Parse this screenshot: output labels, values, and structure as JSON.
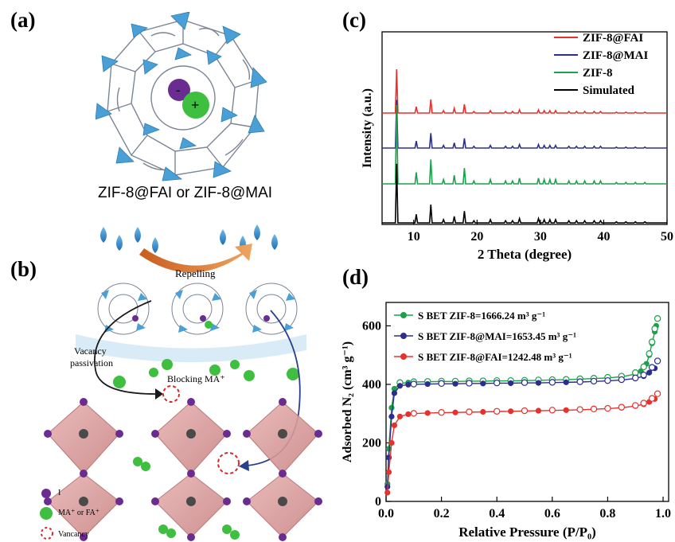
{
  "panels": {
    "a": {
      "label": "(a)",
      "caption": "ZIF-8@FAI or ZIF-8@MAI",
      "ion_minus": "-",
      "ion_plus": "+"
    },
    "b": {
      "label": "(b)",
      "repelling": "Repelling",
      "vacancy_passivation_1": "Vacancy",
      "vacancy_passivation_2": "passivation",
      "blocking": "Blocking MA⁺",
      "legend_i": "I",
      "legend_ma": "MA⁺ or FA⁺",
      "legend_vacancy": "Vancancy"
    },
    "c": {
      "label": "(c)",
      "chart_data": {
        "type": "line",
        "xlabel": "2 Theta (degree)",
        "ylabel": "Intensity (a.u.)",
        "xlim": [
          5,
          50
        ],
        "xticks": [
          10,
          20,
          30,
          40,
          50
        ],
        "peaks_2theta": [
          7.3,
          10.4,
          12.7,
          14.7,
          16.4,
          18.0,
          19.5,
          22.1,
          24.5,
          25.6,
          26.7,
          29.7,
          30.6,
          31.5,
          32.4,
          34.5,
          35.7,
          37.0,
          38.5,
          39.5,
          42.0,
          43.5,
          45.0,
          46.5
        ],
        "series": [
          {
            "name": "ZIF-8@FAI",
            "color": "#e8312d"
          },
          {
            "name": "ZIF-8@MAI",
            "color": "#2c2e8e"
          },
          {
            "name": "ZIF-8",
            "color": "#1aa14b"
          },
          {
            "name": "Simulated",
            "color": "#000000"
          }
        ],
        "legend_position": "top-right"
      }
    },
    "d": {
      "label": "(d)",
      "chart_data": {
        "type": "scatter",
        "xlabel": "Relative Pressure (P/P₀)",
        "ylabel": "Adsorbed N₂ (cm³ g⁻¹)",
        "xlim": [
          0,
          1.02
        ],
        "ylim": [
          0,
          680
        ],
        "xticks": [
          "0.0",
          "0.2",
          "0.4",
          "0.6",
          "0.8",
          "1.0"
        ],
        "yticks": [
          "0",
          "200",
          "400",
          "600"
        ],
        "legend": [
          "S BET ZIF-8=1666.24 m³ g⁻¹",
          "S BET ZIF-8@MAI=1653.45 m³ g⁻¹",
          "S BET ZIF-8@FAI=1242.48 m³ g⁻¹"
        ],
        "legend_position": "top-left",
        "series": [
          {
            "name": "ZIF-8",
            "color": "#1aa14b",
            "adsorption": [
              [
                0.005,
                60
              ],
              [
                0.01,
                180
              ],
              [
                0.02,
                320
              ],
              [
                0.03,
                385
              ],
              [
                0.05,
                403
              ],
              [
                0.08,
                406
              ],
              [
                0.1,
                408
              ],
              [
                0.15,
                409
              ],
              [
                0.2,
                410
              ],
              [
                0.25,
                410
              ],
              [
                0.3,
                411
              ],
              [
                0.35,
                411
              ],
              [
                0.4,
                412
              ],
              [
                0.45,
                412
              ],
              [
                0.5,
                413
              ],
              [
                0.55,
                414
              ],
              [
                0.6,
                415
              ],
              [
                0.65,
                416
              ],
              [
                0.7,
                418
              ],
              [
                0.75,
                420
              ],
              [
                0.8,
                422
              ],
              [
                0.85,
                426
              ],
              [
                0.9,
                435
              ],
              [
                0.92,
                445
              ],
              [
                0.94,
                470
              ],
              [
                0.95,
                500
              ],
              [
                0.96,
                540
              ],
              [
                0.97,
                580
              ],
              [
                0.975,
                600
              ]
            ],
            "desorption": [
              [
                0.98,
                625
              ],
              [
                0.97,
                590
              ],
              [
                0.96,
                545
              ],
              [
                0.95,
                505
              ],
              [
                0.93,
                460
              ],
              [
                0.9,
                440
              ],
              [
                0.85,
                428
              ],
              [
                0.8,
                424
              ],
              [
                0.75,
                421
              ],
              [
                0.7,
                419
              ],
              [
                0.65,
                417
              ],
              [
                0.6,
                416
              ],
              [
                0.55,
                415
              ],
              [
                0.5,
                414
              ],
              [
                0.45,
                413
              ],
              [
                0.4,
                413
              ],
              [
                0.35,
                412
              ],
              [
                0.3,
                412
              ],
              [
                0.25,
                411
              ],
              [
                0.2,
                411
              ],
              [
                0.15,
                410
              ],
              [
                0.1,
                409
              ],
              [
                0.05,
                406
              ]
            ]
          },
          {
            "name": "ZIF-8@MAI",
            "color": "#2c2e8e",
            "adsorption": [
              [
                0.005,
                50
              ],
              [
                0.01,
                150
              ],
              [
                0.02,
                290
              ],
              [
                0.03,
                370
              ],
              [
                0.05,
                395
              ],
              [
                0.08,
                399
              ],
              [
                0.1,
                400
              ],
              [
                0.15,
                401
              ],
              [
                0.2,
                402
              ],
              [
                0.25,
                402
              ],
              [
                0.3,
                403
              ],
              [
                0.35,
                403
              ],
              [
                0.4,
                404
              ],
              [
                0.45,
                404
              ],
              [
                0.5,
                405
              ],
              [
                0.55,
                405
              ],
              [
                0.6,
                406
              ],
              [
                0.65,
                407
              ],
              [
                0.7,
                408
              ],
              [
                0.75,
                410
              ],
              [
                0.8,
                412
              ],
              [
                0.85,
                415
              ],
              [
                0.9,
                420
              ],
              [
                0.93,
                428
              ],
              [
                0.95,
                440
              ],
              [
                0.97,
                455
              ]
            ],
            "desorption": [
              [
                0.98,
                480
              ],
              [
                0.96,
                458
              ],
              [
                0.93,
                432
              ],
              [
                0.9,
                422
              ],
              [
                0.85,
                416
              ],
              [
                0.8,
                413
              ],
              [
                0.75,
                411
              ],
              [
                0.7,
                409
              ],
              [
                0.6,
                407
              ],
              [
                0.5,
                406
              ],
              [
                0.4,
                405
              ],
              [
                0.3,
                404
              ],
              [
                0.2,
                403
              ],
              [
                0.1,
                401
              ]
            ]
          },
          {
            "name": "ZIF-8@FAI",
            "color": "#e8312d",
            "adsorption": [
              [
                0.005,
                30
              ],
              [
                0.01,
                100
              ],
              [
                0.02,
                200
              ],
              [
                0.03,
                260
              ],
              [
                0.05,
                290
              ],
              [
                0.08,
                298
              ],
              [
                0.1,
                300
              ],
              [
                0.15,
                302
              ],
              [
                0.2,
                303
              ],
              [
                0.25,
                304
              ],
              [
                0.3,
                305
              ],
              [
                0.35,
                306
              ],
              [
                0.4,
                307
              ],
              [
                0.45,
                308
              ],
              [
                0.5,
                309
              ],
              [
                0.55,
                310
              ],
              [
                0.6,
                311
              ],
              [
                0.65,
                312
              ],
              [
                0.7,
                313
              ],
              [
                0.75,
                315
              ],
              [
                0.8,
                317
              ],
              [
                0.85,
                320
              ],
              [
                0.9,
                326
              ],
              [
                0.93,
                332
              ],
              [
                0.95,
                340
              ],
              [
                0.97,
                350
              ]
            ],
            "desorption": [
              [
                0.98,
                368
              ],
              [
                0.96,
                352
              ],
              [
                0.93,
                336
              ],
              [
                0.9,
                328
              ],
              [
                0.85,
                322
              ],
              [
                0.8,
                318
              ],
              [
                0.75,
                316
              ],
              [
                0.7,
                314
              ],
              [
                0.6,
                312
              ],
              [
                0.5,
                310
              ],
              [
                0.4,
                308
              ],
              [
                0.3,
                306
              ],
              [
                0.2,
                304
              ],
              [
                0.1,
                301
              ]
            ]
          }
        ]
      }
    }
  }
}
